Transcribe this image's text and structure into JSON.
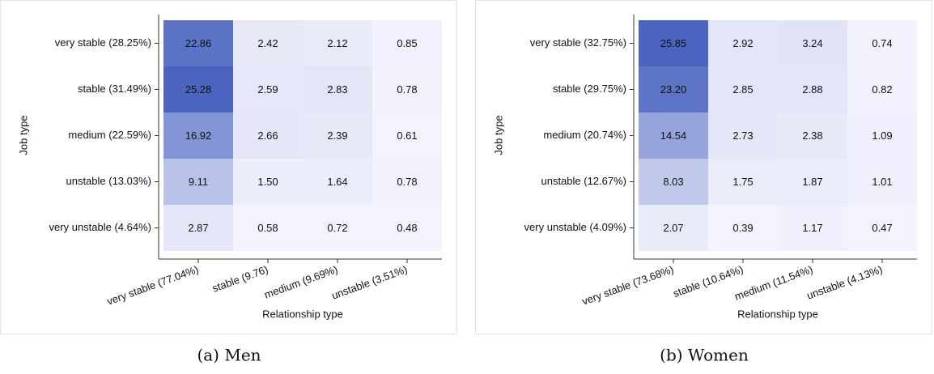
{
  "chart_data": [
    {
      "type": "heatmap",
      "caption": "(a) Men",
      "x_label": "Relationship type",
      "y_label": "Job type",
      "x_categories": [
        "very stable (77.04%)",
        "stable (9.76)",
        "medium (9.69%)",
        "unstable (3.51%)"
      ],
      "y_categories": [
        "very stable (28.25%)",
        "stable (31.49%)",
        "medium (22.59%)",
        "unstable (13.03%)",
        "very unstable (4.64%)"
      ],
      "values": [
        [
          22.86,
          2.42,
          2.12,
          0.85
        ],
        [
          25.28,
          2.59,
          2.83,
          0.78
        ],
        [
          16.92,
          2.66,
          2.39,
          0.61
        ],
        [
          9.11,
          1.5,
          1.64,
          0.78
        ],
        [
          2.87,
          0.58,
          0.72,
          0.48
        ]
      ],
      "value_labels": [
        [
          "22.86",
          "2.42",
          "2.12",
          "0.85"
        ],
        [
          "25.28",
          "2.59",
          "2.83",
          "0.78"
        ],
        [
          "16.92",
          "2.66",
          "2.39",
          "0.61"
        ],
        [
          "9.11",
          "1.50",
          "1.64",
          "0.78"
        ],
        [
          "2.87",
          "0.58",
          "0.72",
          "0.48"
        ]
      ],
      "colors": {
        "low": "#f4f4fe",
        "high": "#4a64bf"
      }
    },
    {
      "type": "heatmap",
      "caption": "(b) Women",
      "x_label": "Relationship type",
      "y_label": "Job type",
      "x_categories": [
        "very stable (73.68%)",
        "stable (10.64%)",
        "medium (11.54%)",
        "unstable (4.13%)"
      ],
      "y_categories": [
        "very stable (32.75%)",
        "stable (29.75%)",
        "medium (20.74%)",
        "unstable (12.67%)",
        "very unstable (4.09%)"
      ],
      "values": [
        [
          25.85,
          2.92,
          3.24,
          0.74
        ],
        [
          23.2,
          2.85,
          2.88,
          0.82
        ],
        [
          14.54,
          2.73,
          2.38,
          1.09
        ],
        [
          8.03,
          1.75,
          1.87,
          1.01
        ],
        [
          2.07,
          0.39,
          1.17,
          0.47
        ]
      ],
      "value_labels": [
        [
          "25.85",
          "2.92",
          "3.24",
          "0.74"
        ],
        [
          "23.20",
          "2.85",
          "2.88",
          "0.82"
        ],
        [
          "14.54",
          "2.73",
          "2.38",
          "1.09"
        ],
        [
          "8.03",
          "1.75",
          "1.87",
          "1.01"
        ],
        [
          "2.07",
          "0.39",
          "1.17",
          "0.47"
        ]
      ],
      "colors": {
        "low": "#f4f4fe",
        "high": "#4a64bf"
      }
    }
  ]
}
